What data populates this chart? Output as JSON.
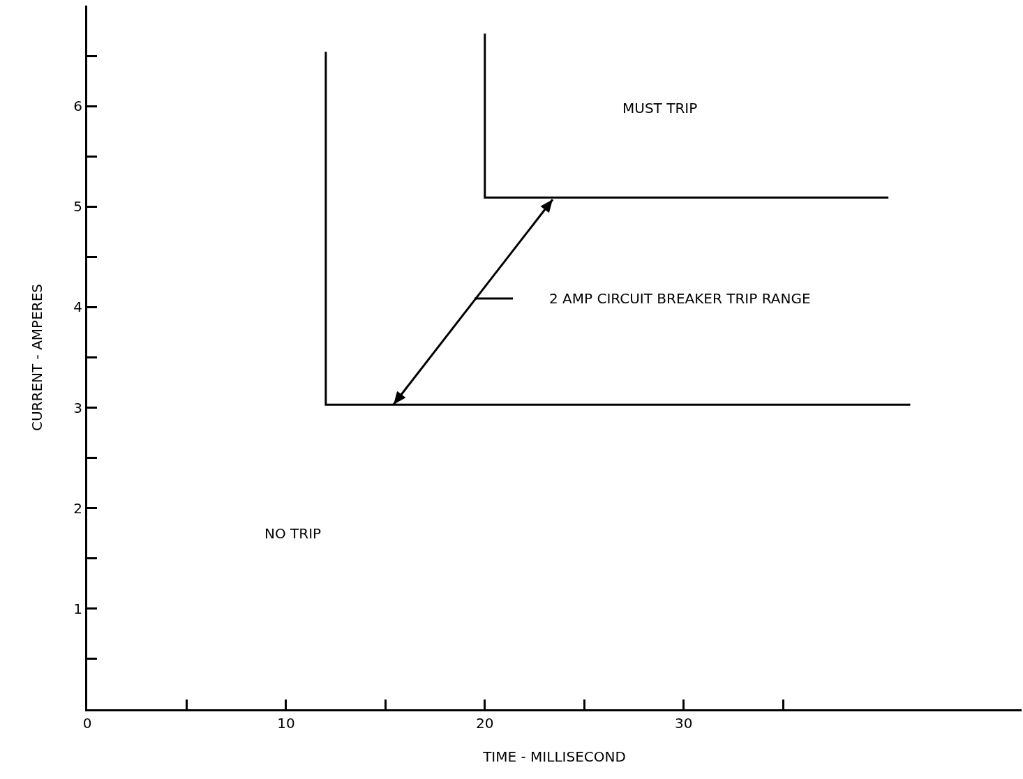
{
  "chart_data": {
    "type": "line",
    "xlabel": "TIME - MILLISECOND",
    "ylabel": "CURRENT - AMPERES",
    "series": [
      {
        "color": "#000000",
        "x": [
          12,
          12,
          41.4
        ],
        "values": [
          6.54,
          3.03,
          3.03
        ]
      },
      {
        "color": "#000000",
        "x": [
          20,
          20,
          40.3
        ],
        "values": [
          6.72,
          5.09,
          5.09
        ]
      }
    ],
    "xlim": [
      0,
      47
    ],
    "ylim": [
      0,
      7
    ],
    "xticks": [
      0,
      {
        "value": 5,
        "label": null
      },
      10,
      {
        "value": 15,
        "label": null
      },
      20,
      {
        "value": 25,
        "label": null
      },
      30,
      {
        "value": 35,
        "label": null
      }
    ],
    "yticks": [
      {
        "value": 0.5,
        "label": null
      },
      1,
      {
        "value": 1.5,
        "label": null
      },
      2,
      {
        "value": 2.5,
        "label": null
      },
      3,
      {
        "value": 3.5,
        "label": null
      },
      4,
      {
        "value": 4.5,
        "label": null
      },
      5,
      {
        "value": 5.5,
        "label": null
      },
      6,
      {
        "value": 6.5,
        "label": null
      }
    ],
    "annotations": [
      "MUST TRIP",
      "NO TRIP",
      "2 AMP CIRCUIT BREAKER TRIP RANGE"
    ],
    "grid": false,
    "marker": "none",
    "line_style": "solid"
  }
}
